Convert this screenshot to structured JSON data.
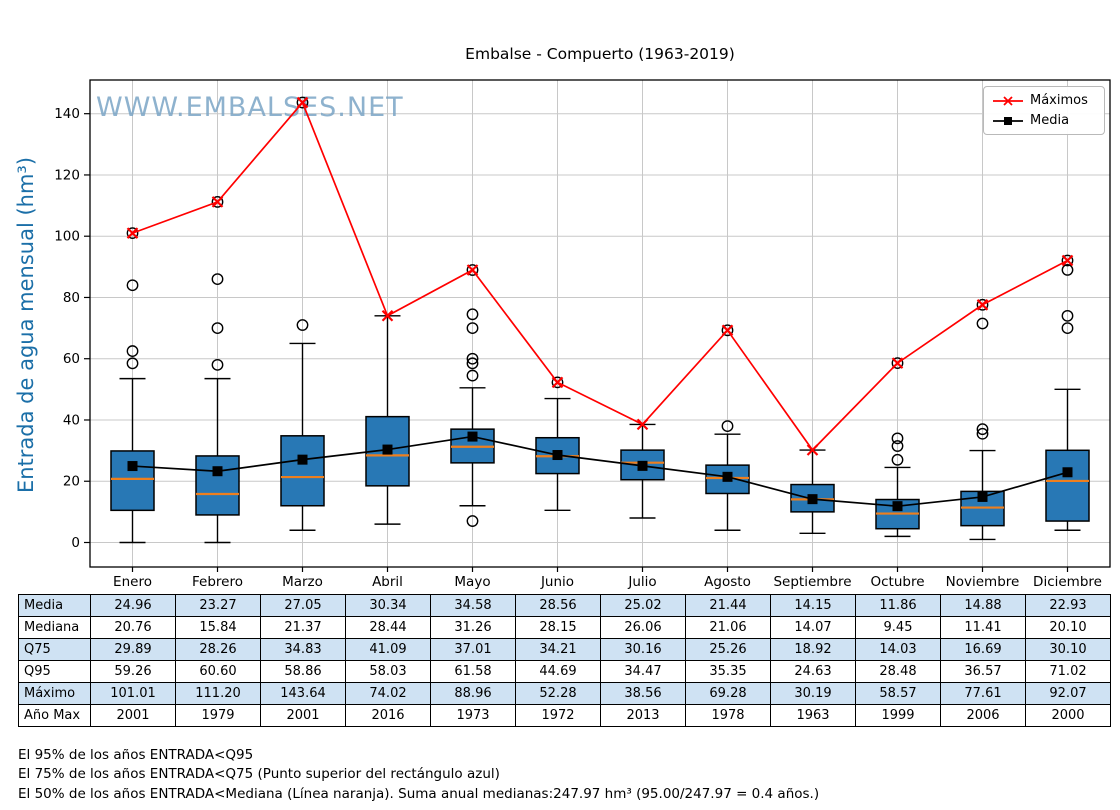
{
  "title": "Embalse - Compuerto (1963-2019)",
  "watermark": "WWW.EMBALSES.NET",
  "y_axis_label": "Entrada de agua mensual (hm³)",
  "legend": {
    "items": [
      {
        "label": "Máximos",
        "color": "#ff0000",
        "marker": "x"
      },
      {
        "label": "Media",
        "color": "#000000",
        "marker": "square"
      }
    ]
  },
  "colors": {
    "box_fill": "#2878b5",
    "box_edge": "#000000",
    "median_line": "#ee7f1e",
    "mean_marker": "#000000",
    "maximos_line": "#ff0000",
    "grid": "#c8c8c8",
    "axis": "#000000",
    "table_shade": "#cfe2f3",
    "ylabel_color": "#1b6fa8",
    "watermark_color": "#7ba5c6"
  },
  "chart_data": {
    "type": "boxplot",
    "categories": [
      "Enero",
      "Febrero",
      "Marzo",
      "Abril",
      "Mayo",
      "Junio",
      "Julio",
      "Agosto",
      "Septiembre",
      "Octubre",
      "Noviembre",
      "Diciembre"
    ],
    "ylabel": "Entrada de agua mensual (hm³)",
    "yticks": [
      0,
      20,
      40,
      60,
      80,
      100,
      120,
      140
    ],
    "ylim": [
      -8,
      151
    ],
    "grid": true,
    "legend_position": "top-right",
    "series": [
      {
        "name": "Máximos",
        "type": "line",
        "marker": "x",
        "color": "#ff0000",
        "values": [
          101.01,
          111.2,
          143.64,
          74.02,
          88.96,
          52.28,
          38.56,
          69.28,
          30.19,
          58.57,
          77.61,
          92.07
        ]
      },
      {
        "name": "Media",
        "type": "line",
        "marker": "square",
        "color": "#000000",
        "values": [
          24.96,
          23.27,
          27.05,
          30.34,
          34.58,
          28.56,
          25.02,
          21.44,
          14.15,
          11.86,
          14.88,
          22.93
        ]
      }
    ],
    "boxplot": {
      "median": [
        20.76,
        15.84,
        21.37,
        28.44,
        31.26,
        28.15,
        26.06,
        21.06,
        14.07,
        9.45,
        11.41,
        20.1
      ],
      "q1": [
        10.5,
        9.0,
        12.0,
        18.5,
        26.0,
        22.5,
        20.5,
        16.0,
        10.0,
        4.5,
        5.5,
        7.0
      ],
      "q3": [
        29.89,
        28.26,
        34.83,
        41.09,
        37.01,
        34.21,
        30.16,
        25.26,
        18.92,
        14.03,
        16.69,
        30.1
      ],
      "whisker_low": [
        0,
        0,
        4,
        6,
        12,
        10.5,
        8,
        4,
        3,
        2,
        1,
        4
      ],
      "whisker_high": [
        53.5,
        53.5,
        65,
        74.02,
        50.5,
        47,
        38.56,
        35.35,
        30.19,
        24.5,
        30,
        50
      ],
      "outliers": [
        [
          58.5,
          62.5,
          84,
          101.01
        ],
        [
          58,
          70,
          86,
          111.2
        ],
        [
          71,
          143.64
        ],
        [],
        [
          7,
          54.5,
          58.5,
          60,
          70,
          74.5,
          88.96
        ],
        [
          52.28
        ],
        [],
        [
          38,
          69.28
        ],
        [],
        [
          27,
          31.5,
          34,
          58.57
        ],
        [
          35.5,
          37,
          71.5,
          77.61
        ],
        [
          70,
          74,
          89,
          92.07
        ]
      ]
    }
  },
  "table": {
    "columns": [
      "Enero",
      "Febrero",
      "Marzo",
      "Abril",
      "Mayo",
      "Junio",
      "Julio",
      "Agosto",
      "Septiembre",
      "Octubre",
      "Noviembre",
      "Diciembre"
    ],
    "rows": [
      {
        "label": "Media",
        "values": [
          "24.96",
          "23.27",
          "27.05",
          "30.34",
          "34.58",
          "28.56",
          "25.02",
          "21.44",
          "14.15",
          "11.86",
          "14.88",
          "22.93"
        ]
      },
      {
        "label": "Mediana",
        "values": [
          "20.76",
          "15.84",
          "21.37",
          "28.44",
          "31.26",
          "28.15",
          "26.06",
          "21.06",
          "14.07",
          "9.45",
          "11.41",
          "20.10"
        ]
      },
      {
        "label": "Q75",
        "values": [
          "29.89",
          "28.26",
          "34.83",
          "41.09",
          "37.01",
          "34.21",
          "30.16",
          "25.26",
          "18.92",
          "14.03",
          "16.69",
          "30.10"
        ]
      },
      {
        "label": "Q95",
        "values": [
          "59.26",
          "60.60",
          "58.86",
          "58.03",
          "61.58",
          "44.69",
          "34.47",
          "35.35",
          "24.63",
          "28.48",
          "36.57",
          "71.02"
        ]
      },
      {
        "label": "Máximo",
        "values": [
          "101.01",
          "111.20",
          "143.64",
          "74.02",
          "88.96",
          "52.28",
          "38.56",
          "69.28",
          "30.19",
          "58.57",
          "77.61",
          "92.07"
        ]
      },
      {
        "label": "Año Max",
        "values": [
          "2001",
          "1979",
          "2001",
          "2016",
          "1973",
          "1972",
          "2013",
          "1978",
          "1963",
          "1999",
          "2006",
          "2000"
        ]
      }
    ]
  },
  "footnotes": [
    "El 95% de los años ENTRADA<Q95",
    "El 75% de los años ENTRADA<Q75 (Punto superior del rectángulo azul)",
    "El 50% de los años ENTRADA<Mediana (Línea naranja). Suma anual medianas:247.97 hm³ (95.00/247.97 = 0.4 años.)"
  ]
}
